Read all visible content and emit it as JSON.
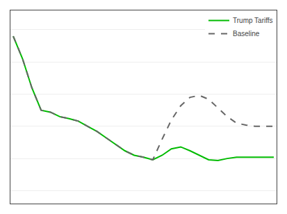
{
  "chart_data": {
    "type": "line",
    "x": [
      0,
      1,
      2,
      3,
      4,
      5,
      6,
      7,
      8,
      9,
      10,
      11,
      12,
      13,
      14,
      15,
      16,
      17,
      18,
      19,
      20,
      21,
      22,
      23,
      24,
      25,
      26,
      27,
      28
    ],
    "series": [
      {
        "name": "Trump Tariffs",
        "color": "#00bb00",
        "line_style": "solid",
        "values": [
          3.9,
          3.55,
          3.1,
          2.75,
          2.72,
          2.65,
          2.62,
          2.58,
          2.5,
          2.42,
          2.32,
          2.22,
          2.12,
          2.05,
          2.02,
          1.98,
          2.05,
          2.15,
          2.18,
          2.12,
          2.05,
          1.98,
          1.97,
          2.0,
          2.02,
          2.02,
          2.02,
          2.02,
          2.02
        ]
      },
      {
        "name": "Baseline",
        "color": "#666666",
        "line_style": "dashed",
        "values": [
          3.9,
          3.55,
          3.1,
          2.75,
          2.72,
          2.65,
          2.62,
          2.58,
          2.5,
          2.42,
          2.32,
          2.22,
          2.12,
          2.05,
          2.02,
          1.98,
          2.3,
          2.6,
          2.82,
          2.95,
          2.98,
          2.92,
          2.78,
          2.65,
          2.55,
          2.52,
          2.5,
          2.5,
          2.5
        ]
      }
    ],
    "xlim": [
      -0.3,
      28.3
    ],
    "ylim": [
      1.3,
      4.3
    ],
    "yticks": [
      1.5,
      2.0,
      2.5,
      3.0,
      3.5,
      4.0
    ],
    "grid": "y",
    "legend": "upper right",
    "tick_labels": false
  }
}
